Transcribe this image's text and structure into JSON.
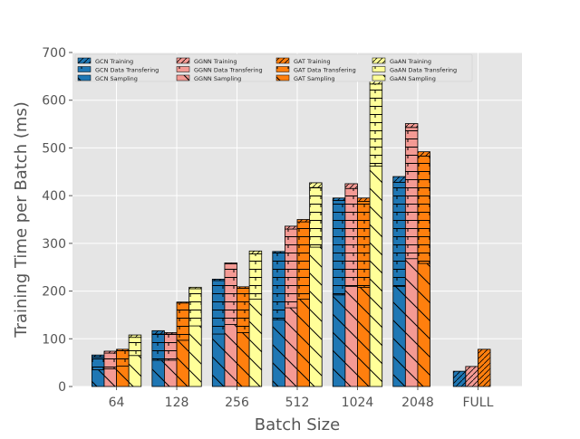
{
  "chart_data": {
    "type": "bar",
    "stacked": true,
    "xlabel": "Batch Size",
    "ylabel": "Training Time per Batch (ms)",
    "ylim": [
      0,
      700
    ],
    "yticks": [
      0,
      100,
      200,
      300,
      400,
      500,
      600,
      700
    ],
    "grid": true,
    "legend_position": "top-left",
    "categories": [
      "64",
      "128",
      "256",
      "512",
      "1024",
      "2048",
      "FULL"
    ],
    "models": [
      {
        "name": "GCN",
        "color": "#1f77b4",
        "sampling": [
          35,
          55,
          110,
          140,
          192,
          210,
          0
        ],
        "data_transfer": [
          27,
          55,
          112,
          140,
          198,
          218,
          0
        ],
        "training": [
          4,
          7,
          3,
          3,
          5,
          12,
          32
        ]
      },
      {
        "name": "GGNN",
        "color": "#f49a94",
        "sampling": [
          37,
          55,
          130,
          165,
          210,
          268,
          0
        ],
        "data_transfer": [
          33,
          55,
          127,
          165,
          205,
          275,
          0
        ],
        "training": [
          4,
          3,
          2,
          6,
          10,
          8,
          42
        ]
      },
      {
        "name": "GAT",
        "color": "#ff7f0e",
        "sampling": [
          43,
          97,
          113,
          183,
          208,
          258,
          0
        ],
        "data_transfer": [
          32,
          78,
          93,
          162,
          180,
          225,
          0
        ],
        "training": [
          3,
          2,
          3,
          5,
          7,
          9,
          78
        ]
      },
      {
        "name": "GaAN",
        "color": "#ffff99",
        "sampling": [
          65,
          127,
          183,
          292,
          462,
          0,
          0
        ],
        "data_transfer": [
          38,
          78,
          95,
          125,
          172,
          0,
          0
        ],
        "training": [
          5,
          3,
          6,
          10,
          26,
          0,
          0
        ]
      }
    ],
    "legend": [
      [
        "GCN Training",
        "GCN Data Transfering",
        "GCN Sampling"
      ],
      [
        "GGNN Training",
        "GGNN Data Transfering",
        "GGNN Sampling"
      ],
      [
        "GAT Training",
        "GAT Data Transfering",
        "GAT Sampling"
      ],
      [
        "GaAN Training",
        "GaAN Data Transfering",
        "GaAN Sampling"
      ]
    ]
  }
}
